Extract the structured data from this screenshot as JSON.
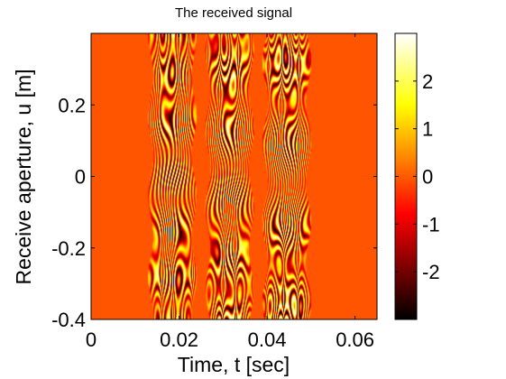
{
  "chart_data": {
    "type": "heatmap",
    "title": "The received signal",
    "xlabel": "Time, t [sec]",
    "ylabel": "Receive aperture, u [m]",
    "xlim": [
      0,
      0.065
    ],
    "ylim": [
      -0.4,
      0.4
    ],
    "x_ticks": [
      0,
      0.02,
      0.04,
      0.06
    ],
    "x_tick_labels": [
      "0",
      "0.02",
      "0.04",
      "0.06"
    ],
    "y_ticks": [
      -0.4,
      -0.2,
      0,
      0.2
    ],
    "y_tick_labels": [
      "-0.4",
      "-0.2",
      "0",
      "0.2"
    ],
    "colormap": "hot",
    "background_value": 0,
    "colorbar": {
      "range": [
        -3,
        3
      ],
      "ticks": [
        -2,
        -1,
        0,
        1,
        2
      ],
      "tick_labels": [
        "-2",
        "-1",
        "0",
        "1",
        "2"
      ]
    },
    "signal_bands": [
      {
        "name": "",
        "t_start": 0.0135,
        "t_end": 0.0235,
        "amplitude": 3
      },
      {
        "name": "",
        "t_start": 0.0265,
        "t_end": 0.0365,
        "amplitude": 3
      },
      {
        "name": "",
        "t_start": 0.0395,
        "t_end": 0.0495,
        "amplitude": 3
      }
    ],
    "grid": false
  }
}
